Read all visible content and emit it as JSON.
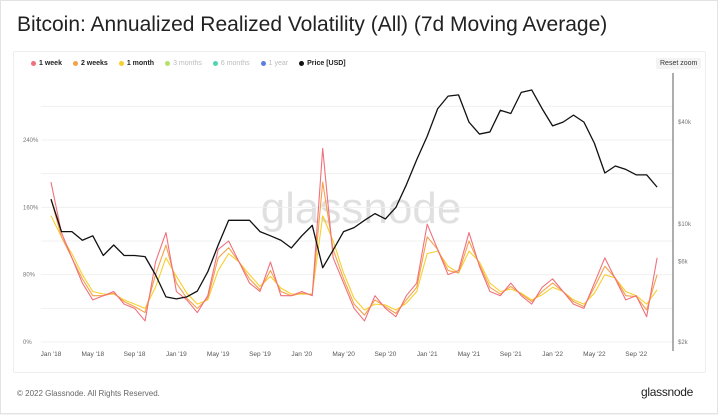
{
  "title": "Bitcoin: Annualized Realized Volatility (All) (7d Moving Average)",
  "reset_zoom": "Reset zoom",
  "footer": "© 2022 Glassnode. All Rights Reserved.",
  "logo": "glassnode",
  "watermark": "glassnode",
  "legend": [
    {
      "label": "1 week",
      "color": "#f0707c",
      "active": true
    },
    {
      "label": "2 weeks",
      "color": "#f5a14a",
      "active": true
    },
    {
      "label": "1 month",
      "color": "#f7cf2f",
      "active": true
    },
    {
      "label": "3 months",
      "color": "#b5e06b",
      "active": false
    },
    {
      "label": "6 months",
      "color": "#4fd6b0",
      "active": false
    },
    {
      "label": "1 year",
      "color": "#5b7fe0",
      "active": false
    },
    {
      "label": "Price [USD]",
      "color": "#111111",
      "active": true
    }
  ],
  "chart_data": {
    "type": "line",
    "title": "Bitcoin: Annualized Realized Volatility (All) (7d Moving Average)",
    "x_start": "2018-01",
    "x_step": "month",
    "x_ticks": [
      "Jan '18",
      "May '18",
      "Sep '18",
      "Jan '19",
      "May '19",
      "Sep '19",
      "Jan '20",
      "May '20",
      "Sep '20",
      "Jan '21",
      "May '21",
      "Sep '21",
      "Jan '22",
      "May '22",
      "Sep '22"
    ],
    "y_left": {
      "ticks": [
        "0%",
        "80%",
        "160%",
        "240%"
      ],
      "range": [
        0,
        240
      ]
    },
    "y_right": {
      "ticks": [
        "$2k",
        "$6k",
        "$10k",
        "$40k"
      ],
      "tick_values": [
        2000,
        6000,
        10000,
        40000
      ],
      "scale": "log"
    },
    "series": [
      {
        "name": "1 week",
        "axis": "left",
        "values": [
          190,
          130,
          100,
          70,
          50,
          55,
          60,
          45,
          40,
          25,
          95,
          130,
          60,
          50,
          35,
          55,
          110,
          120,
          95,
          70,
          60,
          95,
          55,
          55,
          60,
          55,
          230,
          100,
          70,
          40,
          25,
          55,
          40,
          30,
          55,
          70,
          140,
          110,
          80,
          85,
          130,
          90,
          60,
          55,
          70,
          55,
          45,
          65,
          75,
          60,
          45,
          40,
          70,
          100,
          75,
          50,
          55,
          30,
          100
        ]
      },
      {
        "name": "2 weeks",
        "axis": "left",
        "values": [
          170,
          125,
          100,
          75,
          55,
          55,
          58,
          48,
          42,
          35,
          80,
          115,
          70,
          52,
          40,
          52,
          100,
          112,
          95,
          75,
          62,
          85,
          60,
          55,
          58,
          56,
          190,
          110,
          75,
          45,
          32,
          50,
          42,
          34,
          50,
          65,
          125,
          110,
          85,
          82,
          120,
          92,
          65,
          57,
          66,
          57,
          48,
          60,
          70,
          60,
          48,
          42,
          65,
          90,
          76,
          55,
          54,
          38,
          80
        ]
      },
      {
        "name": "1 month",
        "axis": "left",
        "values": [
          150,
          125,
          105,
          80,
          60,
          57,
          57,
          50,
          45,
          40,
          65,
          100,
          78,
          58,
          45,
          50,
          85,
          105,
          95,
          80,
          66,
          78,
          64,
          57,
          57,
          57,
          150,
          120,
          82,
          52,
          38,
          45,
          44,
          38,
          46,
          60,
          105,
          108,
          90,
          82,
          108,
          95,
          70,
          60,
          63,
          58,
          50,
          56,
          65,
          60,
          50,
          45,
          58,
          80,
          76,
          60,
          55,
          45,
          62
        ]
      },
      {
        "name": "Price [USD]",
        "axis": "right",
        "values": [
          14000,
          9000,
          9000,
          8000,
          8500,
          6500,
          7500,
          6500,
          6500,
          6400,
          5000,
          3700,
          3600,
          3700,
          4000,
          5200,
          7500,
          10500,
          10500,
          10500,
          9000,
          8500,
          8000,
          7200,
          8500,
          9800,
          5500,
          7000,
          9000,
          9500,
          10500,
          11500,
          10700,
          12500,
          17000,
          24000,
          33000,
          48000,
          57000,
          58000,
          40000,
          34000,
          35000,
          47000,
          45000,
          60000,
          62000,
          48000,
          38000,
          40000,
          44000,
          40000,
          30000,
          20000,
          22000,
          21000,
          19500,
          19500,
          16500
        ]
      }
    ]
  }
}
